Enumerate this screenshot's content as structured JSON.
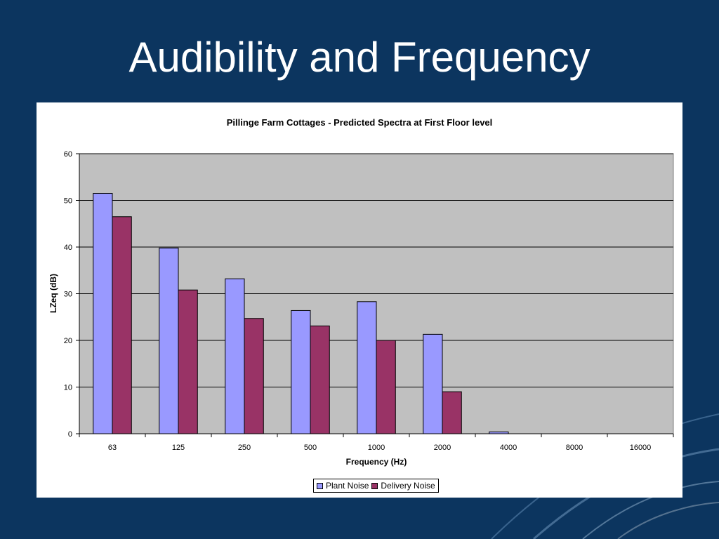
{
  "slide": {
    "title": "Audibility and Frequency"
  },
  "theme": {
    "background": "#0c355f",
    "plot_bg": "#c0c0c0"
  },
  "chart_data": {
    "type": "bar",
    "title": "Pillinge Farm Cottages - Predicted Spectra at First Floor level",
    "xlabel": "Frequency (Hz)",
    "ylabel": "LZeq (dB)",
    "ylim": [
      0,
      60
    ],
    "yticks": [
      0,
      10,
      20,
      30,
      40,
      50,
      60
    ],
    "grid": true,
    "legend_position": "bottom",
    "categories": [
      "63",
      "125",
      "250",
      "500",
      "1000",
      "2000",
      "4000",
      "8000",
      "16000"
    ],
    "series": [
      {
        "name": "Plant Noise",
        "color": "#9999ff",
        "values": [
          51.5,
          39.8,
          33.2,
          26.4,
          28.3,
          21.3,
          0.4,
          0,
          0
        ]
      },
      {
        "name": "Delivery Noise",
        "color": "#993366",
        "values": [
          46.5,
          30.8,
          24.7,
          23.1,
          20.0,
          9.0,
          0,
          0,
          0
        ]
      }
    ]
  }
}
